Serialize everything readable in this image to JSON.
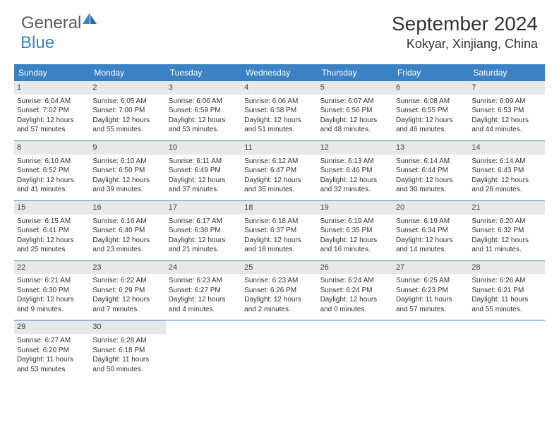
{
  "logo": {
    "word1": "General",
    "word2": "Blue"
  },
  "title": "September 2024",
  "location": "Kokyar, Xinjiang, China",
  "weekdays": [
    "Sunday",
    "Monday",
    "Tuesday",
    "Wednesday",
    "Thursday",
    "Friday",
    "Saturday"
  ],
  "colors": {
    "primary": "#3b82c4",
    "dayNumberBg": "#e8e8e8",
    "text": "#333333"
  },
  "days": [
    {
      "n": "1",
      "sr": "Sunrise: 6:04 AM",
      "ss": "Sunset: 7:02 PM",
      "d1": "Daylight: 12 hours",
      "d2": "and 57 minutes."
    },
    {
      "n": "2",
      "sr": "Sunrise: 6:05 AM",
      "ss": "Sunset: 7:00 PM",
      "d1": "Daylight: 12 hours",
      "d2": "and 55 minutes."
    },
    {
      "n": "3",
      "sr": "Sunrise: 6:06 AM",
      "ss": "Sunset: 6:59 PM",
      "d1": "Daylight: 12 hours",
      "d2": "and 53 minutes."
    },
    {
      "n": "4",
      "sr": "Sunrise: 6:06 AM",
      "ss": "Sunset: 6:58 PM",
      "d1": "Daylight: 12 hours",
      "d2": "and 51 minutes."
    },
    {
      "n": "5",
      "sr": "Sunrise: 6:07 AM",
      "ss": "Sunset: 6:56 PM",
      "d1": "Daylight: 12 hours",
      "d2": "and 48 minutes."
    },
    {
      "n": "6",
      "sr": "Sunrise: 6:08 AM",
      "ss": "Sunset: 6:55 PM",
      "d1": "Daylight: 12 hours",
      "d2": "and 46 minutes."
    },
    {
      "n": "7",
      "sr": "Sunrise: 6:09 AM",
      "ss": "Sunset: 6:53 PM",
      "d1": "Daylight: 12 hours",
      "d2": "and 44 minutes."
    },
    {
      "n": "8",
      "sr": "Sunrise: 6:10 AM",
      "ss": "Sunset: 6:52 PM",
      "d1": "Daylight: 12 hours",
      "d2": "and 41 minutes."
    },
    {
      "n": "9",
      "sr": "Sunrise: 6:10 AM",
      "ss": "Sunset: 6:50 PM",
      "d1": "Daylight: 12 hours",
      "d2": "and 39 minutes."
    },
    {
      "n": "10",
      "sr": "Sunrise: 6:11 AM",
      "ss": "Sunset: 6:49 PM",
      "d1": "Daylight: 12 hours",
      "d2": "and 37 minutes."
    },
    {
      "n": "11",
      "sr": "Sunrise: 6:12 AM",
      "ss": "Sunset: 6:47 PM",
      "d1": "Daylight: 12 hours",
      "d2": "and 35 minutes."
    },
    {
      "n": "12",
      "sr": "Sunrise: 6:13 AM",
      "ss": "Sunset: 6:46 PM",
      "d1": "Daylight: 12 hours",
      "d2": "and 32 minutes."
    },
    {
      "n": "13",
      "sr": "Sunrise: 6:14 AM",
      "ss": "Sunset: 6:44 PM",
      "d1": "Daylight: 12 hours",
      "d2": "and 30 minutes."
    },
    {
      "n": "14",
      "sr": "Sunrise: 6:14 AM",
      "ss": "Sunset: 6:43 PM",
      "d1": "Daylight: 12 hours",
      "d2": "and 28 minutes."
    },
    {
      "n": "15",
      "sr": "Sunrise: 6:15 AM",
      "ss": "Sunset: 6:41 PM",
      "d1": "Daylight: 12 hours",
      "d2": "and 25 minutes."
    },
    {
      "n": "16",
      "sr": "Sunrise: 6:16 AM",
      "ss": "Sunset: 6:40 PM",
      "d1": "Daylight: 12 hours",
      "d2": "and 23 minutes."
    },
    {
      "n": "17",
      "sr": "Sunrise: 6:17 AM",
      "ss": "Sunset: 6:38 PM",
      "d1": "Daylight: 12 hours",
      "d2": "and 21 minutes."
    },
    {
      "n": "18",
      "sr": "Sunrise: 6:18 AM",
      "ss": "Sunset: 6:37 PM",
      "d1": "Daylight: 12 hours",
      "d2": "and 18 minutes."
    },
    {
      "n": "19",
      "sr": "Sunrise: 6:19 AM",
      "ss": "Sunset: 6:35 PM",
      "d1": "Daylight: 12 hours",
      "d2": "and 16 minutes."
    },
    {
      "n": "20",
      "sr": "Sunrise: 6:19 AM",
      "ss": "Sunset: 6:34 PM",
      "d1": "Daylight: 12 hours",
      "d2": "and 14 minutes."
    },
    {
      "n": "21",
      "sr": "Sunrise: 6:20 AM",
      "ss": "Sunset: 6:32 PM",
      "d1": "Daylight: 12 hours",
      "d2": "and 11 minutes."
    },
    {
      "n": "22",
      "sr": "Sunrise: 6:21 AM",
      "ss": "Sunset: 6:30 PM",
      "d1": "Daylight: 12 hours",
      "d2": "and 9 minutes."
    },
    {
      "n": "23",
      "sr": "Sunrise: 6:22 AM",
      "ss": "Sunset: 6:29 PM",
      "d1": "Daylight: 12 hours",
      "d2": "and 7 minutes."
    },
    {
      "n": "24",
      "sr": "Sunrise: 6:23 AM",
      "ss": "Sunset: 6:27 PM",
      "d1": "Daylight: 12 hours",
      "d2": "and 4 minutes."
    },
    {
      "n": "25",
      "sr": "Sunrise: 6:23 AM",
      "ss": "Sunset: 6:26 PM",
      "d1": "Daylight: 12 hours",
      "d2": "and 2 minutes."
    },
    {
      "n": "26",
      "sr": "Sunrise: 6:24 AM",
      "ss": "Sunset: 6:24 PM",
      "d1": "Daylight: 12 hours",
      "d2": "and 0 minutes."
    },
    {
      "n": "27",
      "sr": "Sunrise: 6:25 AM",
      "ss": "Sunset: 6:23 PM",
      "d1": "Daylight: 11 hours",
      "d2": "and 57 minutes."
    },
    {
      "n": "28",
      "sr": "Sunrise: 6:26 AM",
      "ss": "Sunset: 6:21 PM",
      "d1": "Daylight: 11 hours",
      "d2": "and 55 minutes."
    },
    {
      "n": "29",
      "sr": "Sunrise: 6:27 AM",
      "ss": "Sunset: 6:20 PM",
      "d1": "Daylight: 11 hours",
      "d2": "and 53 minutes."
    },
    {
      "n": "30",
      "sr": "Sunrise: 6:28 AM",
      "ss": "Sunset: 6:18 PM",
      "d1": "Daylight: 11 hours",
      "d2": "and 50 minutes."
    }
  ]
}
